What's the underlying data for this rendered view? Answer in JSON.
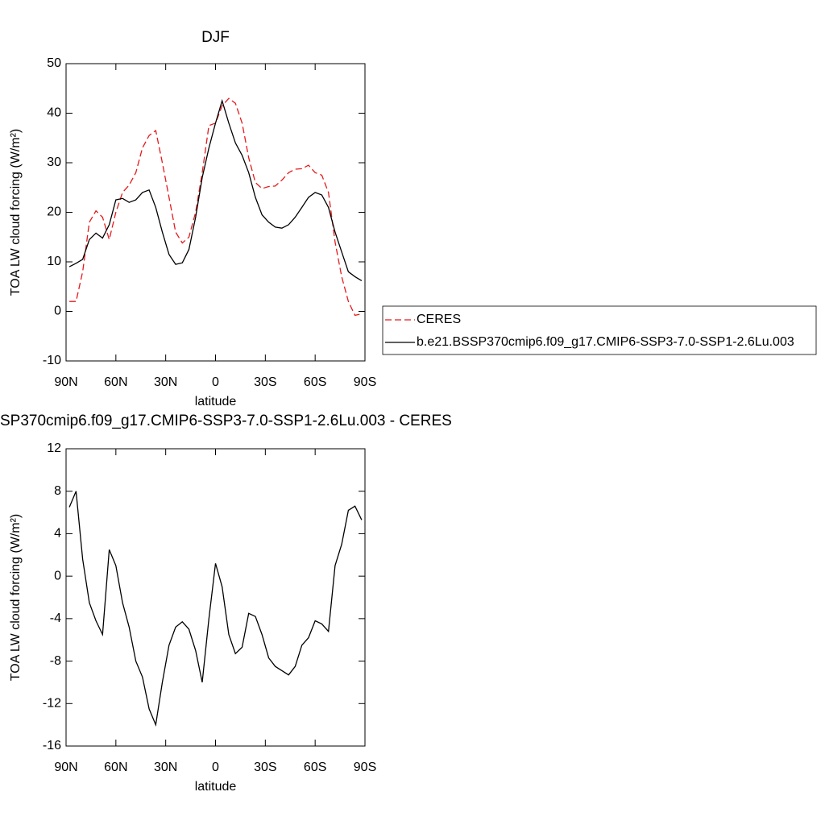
{
  "chart_data": [
    {
      "type": "line",
      "title": "DJF",
      "xlabel": "latitude",
      "ylabel": "TOA LW cloud forcing (W/m²)",
      "xlim": [
        90,
        -90
      ],
      "xticks": [
        {
          "value": 90,
          "label": "90N"
        },
        {
          "value": 60,
          "label": "60N"
        },
        {
          "value": 30,
          "label": "30N"
        },
        0,
        {
          "value": -30,
          "label": "30S"
        },
        {
          "value": -60,
          "label": "60S"
        },
        {
          "value": -90,
          "label": "90S"
        }
      ],
      "ylim": [
        -10,
        50
      ],
      "yticks": [
        -10,
        0,
        10,
        20,
        30,
        40,
        50
      ],
      "legend": "right",
      "x": [
        88,
        84,
        80,
        76,
        72,
        68,
        64,
        60,
        56,
        52,
        48,
        44,
        40,
        36,
        32,
        28,
        24,
        20,
        16,
        12,
        8,
        4,
        0,
        -4,
        -8,
        -12,
        -16,
        -20,
        -24,
        -28,
        -32,
        -36,
        -40,
        -44,
        -48,
        -52,
        -56,
        -60,
        -64,
        -68,
        -72,
        -76,
        -80,
        -84,
        -88
      ],
      "series": [
        {
          "name": "CERES",
          "color": "#e41a1c",
          "dashed": true,
          "values": [
            2,
            2,
            8,
            18,
            20.3,
            19,
            14.5,
            20,
            24,
            25.5,
            28,
            33,
            35.5,
            36.5,
            30,
            23,
            16,
            13.8,
            15,
            20,
            28,
            37.5,
            38,
            41.5,
            43,
            42,
            38,
            31,
            26,
            24.8,
            25.2,
            25.3,
            26.5,
            28,
            28.7,
            28.8,
            29.5,
            28,
            27.5,
            24,
            14,
            7,
            2,
            -0.8,
            -0.5
          ]
        },
        {
          "name": "b.e21.BSSP370cmip6.f09_g17.CMIP6-SSP3-7.0-SSP1-2.6Lu.003",
          "color": "#000000",
          "dashed": false,
          "values": [
            9,
            9.7,
            10.5,
            14.5,
            15.8,
            14.8,
            17.5,
            22.5,
            22.8,
            22,
            22.5,
            24,
            24.5,
            21,
            16,
            11.5,
            9.5,
            9.8,
            12.5,
            19,
            27,
            33,
            38,
            42.5,
            38,
            34,
            31.5,
            28,
            23,
            19.5,
            18,
            17,
            16.8,
            17.5,
            19,
            21,
            23,
            24,
            23.5,
            21,
            16,
            12,
            8,
            7,
            6.2
          ]
        }
      ]
    },
    {
      "type": "line",
      "title": "SP370cmip6.f09_g17.CMIP6-SSP3-7.0-SSP1-2.6Lu.003 - CERES",
      "xlabel": "latitude",
      "ylabel": "TOA LW cloud forcing (W/m²)",
      "xlim": [
        90,
        -90
      ],
      "xticks": [
        {
          "value": 90,
          "label": "90N"
        },
        {
          "value": 60,
          "label": "60N"
        },
        {
          "value": 30,
          "label": "30N"
        },
        0,
        {
          "value": -30,
          "label": "30S"
        },
        {
          "value": -60,
          "label": "60S"
        },
        {
          "value": -90,
          "label": "90S"
        }
      ],
      "ylim": [
        -16,
        12
      ],
      "yticks": [
        -16,
        -12,
        -8,
        -4,
        0,
        4,
        8,
        12
      ],
      "x": [
        88,
        84,
        80,
        76,
        72,
        68,
        64,
        60,
        56,
        52,
        48,
        44,
        40,
        36,
        32,
        28,
        24,
        20,
        16,
        12,
        8,
        4,
        0,
        -4,
        -8,
        -12,
        -16,
        -20,
        -24,
        -28,
        -32,
        -36,
        -40,
        -44,
        -48,
        -52,
        -56,
        -60,
        -64,
        -68,
        -72,
        -76,
        -80,
        -84,
        -88
      ],
      "series": [
        {
          "color": "#000000",
          "dashed": false,
          "values": [
            6.5,
            8,
            1.6,
            -2.5,
            -4.2,
            -5.5,
            2.5,
            1,
            -2.5,
            -4.8,
            -8,
            -9.5,
            -12.5,
            -14,
            -10,
            -6.5,
            -4.8,
            -4.3,
            -5,
            -7,
            -10,
            -4,
            1.2,
            -1,
            -5.5,
            -7.3,
            -6.7,
            -3.5,
            -3.8,
            -5.5,
            -7.7,
            -8.5,
            -8.9,
            -9.3,
            -8.5,
            -6.5,
            -5.8,
            -4.2,
            -4.5,
            -5.2,
            1,
            3,
            6.2,
            6.6,
            5.3
          ]
        }
      ]
    }
  ]
}
